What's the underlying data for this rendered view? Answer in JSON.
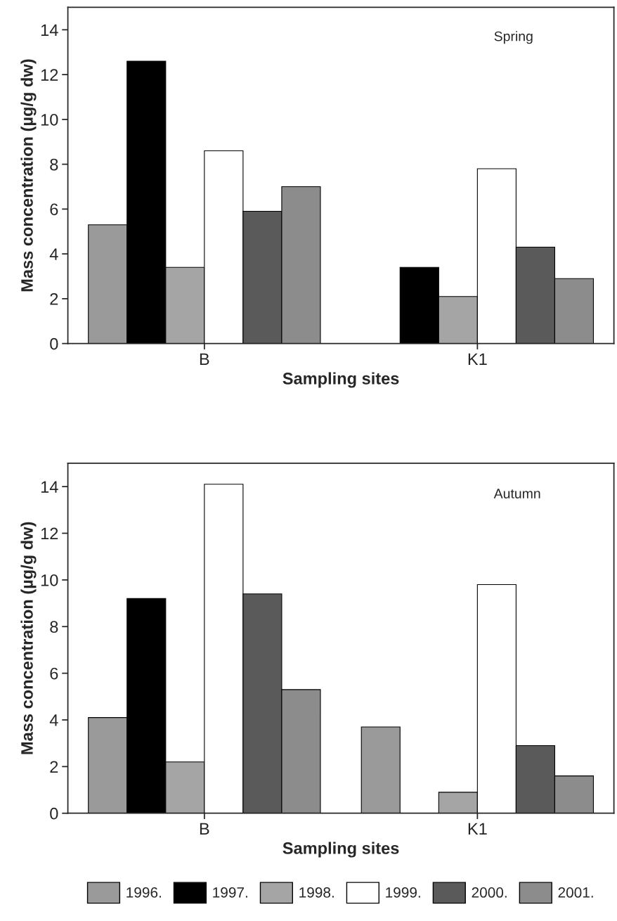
{
  "chart_data": [
    {
      "type": "bar",
      "categories": [
        "B",
        "K1"
      ],
      "xlabel": "Sampling sites",
      "ylabel": "Mass concentration (µg/g dw)",
      "ylim": [
        0,
        15
      ],
      "yticks": [
        0,
        2,
        4,
        6,
        8,
        10,
        12,
        14
      ],
      "annotations": [
        "Spring"
      ],
      "legend": "bottom",
      "series": [
        {
          "name": "1996.",
          "color": "#9a9a9a",
          "values": [
            5.3,
            null
          ]
        },
        {
          "name": "1997.",
          "color": "#000000",
          "values": [
            12.6,
            3.4
          ]
        },
        {
          "name": "1998.",
          "color": "#a5a5a5",
          "values": [
            3.4,
            2.1
          ]
        },
        {
          "name": "1999.",
          "color": "#ffffff",
          "values": [
            8.6,
            7.8
          ]
        },
        {
          "name": "2000.",
          "color": "#5a5a5a",
          "values": [
            5.9,
            4.3
          ]
        },
        {
          "name": "2001.",
          "color": "#8c8c8c",
          "values": [
            7.0,
            2.9
          ]
        }
      ]
    },
    {
      "type": "bar",
      "categories": [
        "B",
        "K1"
      ],
      "xlabel": "Sampling sites",
      "ylabel": "Mass concentration (µg/g dw)",
      "ylim": [
        0,
        15
      ],
      "yticks": [
        0,
        2,
        4,
        6,
        8,
        10,
        12,
        14
      ],
      "annotations": [
        "Autumn"
      ],
      "legend": "bottom",
      "series": [
        {
          "name": "1996.",
          "color": "#9a9a9a",
          "values": [
            4.1,
            3.7
          ]
        },
        {
          "name": "1997.",
          "color": "#000000",
          "values": [
            9.2,
            null
          ]
        },
        {
          "name": "1998.",
          "color": "#a5a5a5",
          "values": [
            2.2,
            0.9
          ]
        },
        {
          "name": "1999.",
          "color": "#ffffff",
          "values": [
            14.1,
            9.8
          ]
        },
        {
          "name": "2000.",
          "color": "#5a5a5a",
          "values": [
            9.4,
            2.9
          ]
        },
        {
          "name": "2001.",
          "color": "#8c8c8c",
          "values": [
            5.3,
            1.6
          ]
        }
      ]
    }
  ]
}
